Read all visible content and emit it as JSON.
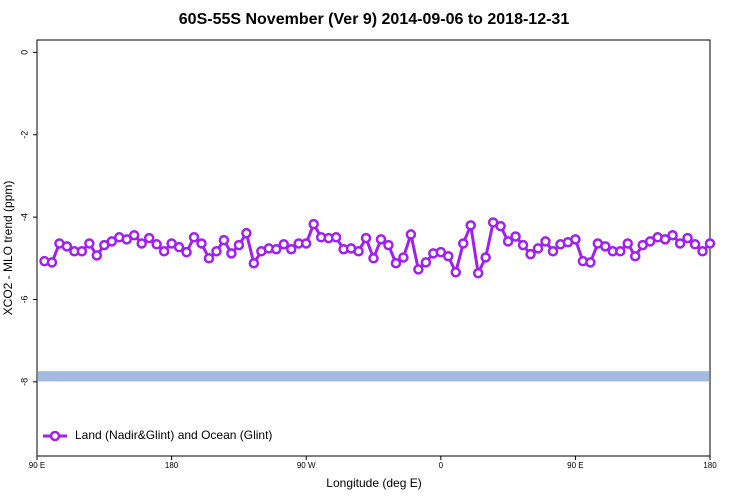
{
  "chart_data": {
    "type": "line",
    "title": "60S-55S November (Ver 9)   2014-09-06 to 2018-12-31",
    "x_label": "Longitude (deg E)",
    "y_label": "XCO2 - MLO trend (ppm)",
    "x": [
      95,
      100,
      105,
      110,
      115,
      120,
      125,
      130,
      135,
      140,
      145,
      150,
      155,
      160,
      165,
      170,
      175,
      180,
      185,
      190,
      195,
      200,
      205,
      210,
      215,
      220,
      225,
      230,
      235,
      240,
      245,
      250,
      255,
      260,
      265,
      270,
      275,
      280,
      285,
      290,
      295,
      300,
      305,
      310,
      315,
      320,
      325,
      330,
      335,
      340,
      345,
      350,
      355,
      360,
      365,
      370,
      375,
      380,
      385,
      390,
      395,
      400,
      405,
      410,
      415,
      420,
      425,
      430,
      435,
      440,
      445,
      450,
      455,
      460,
      465,
      470,
      475,
      480,
      485,
      490,
      495,
      500,
      505,
      510,
      515,
      520,
      525,
      530,
      535,
      540
    ],
    "series": [
      {
        "name": "Land (Nadir&Glint) and Ocean (Glint)",
        "color": "#a020f0",
        "values": [
          -5.07,
          -5.1,
          -4.64,
          -4.71,
          -4.83,
          -4.83,
          -4.64,
          -4.93,
          -4.68,
          -4.59,
          -4.49,
          -4.54,
          -4.44,
          -4.64,
          -4.51,
          -4.66,
          -4.83,
          -4.64,
          -4.73,
          -4.85,
          -4.49,
          -4.64,
          -5.0,
          -4.83,
          -4.56,
          -4.88,
          -4.68,
          -4.39,
          -5.12,
          -4.83,
          -4.76,
          -4.78,
          -4.66,
          -4.78,
          -4.64,
          -4.64,
          -4.17,
          -4.49,
          -4.51,
          -4.49,
          -4.78,
          -4.76,
          -4.83,
          -4.51,
          -5.0,
          -4.54,
          -4.68,
          -5.12,
          -4.98,
          -4.42,
          -5.27,
          -5.1,
          -4.88,
          -4.85,
          -4.95,
          -5.34,
          -4.64,
          -4.2,
          -5.36,
          -4.98,
          -4.13,
          -4.22,
          -4.59,
          -4.47,
          -4.68,
          -4.9,
          -4.76,
          -4.59,
          -4.83,
          -4.66,
          -4.61,
          -4.54,
          -5.07,
          -5.1,
          -4.64,
          -4.71,
          -4.83,
          -4.83,
          -4.64,
          -4.95,
          -4.68,
          -4.59,
          -4.49,
          -4.54,
          -4.44,
          -4.64,
          -4.51,
          -4.66,
          -4.83,
          -4.64
        ]
      }
    ],
    "reference_band": {
      "color": "#a4bbdf",
      "range": [
        -7.99,
        -7.74
      ]
    },
    "xlim": [
      90,
      540
    ],
    "xticks": [
      {
        "value": 90,
        "label": "90 E"
      },
      180,
      {
        "value": 270,
        "label": "90 W"
      },
      {
        "value": 360,
        "label": "0"
      },
      {
        "value": 450,
        "label": "90 E"
      },
      {
        "value": 540,
        "label": "180"
      }
    ],
    "ylim": [
      -9.8,
      0.3
    ],
    "yticks": [
      0,
      -2,
      -4,
      -6,
      -8
    ],
    "legend": "bottom-left"
  }
}
